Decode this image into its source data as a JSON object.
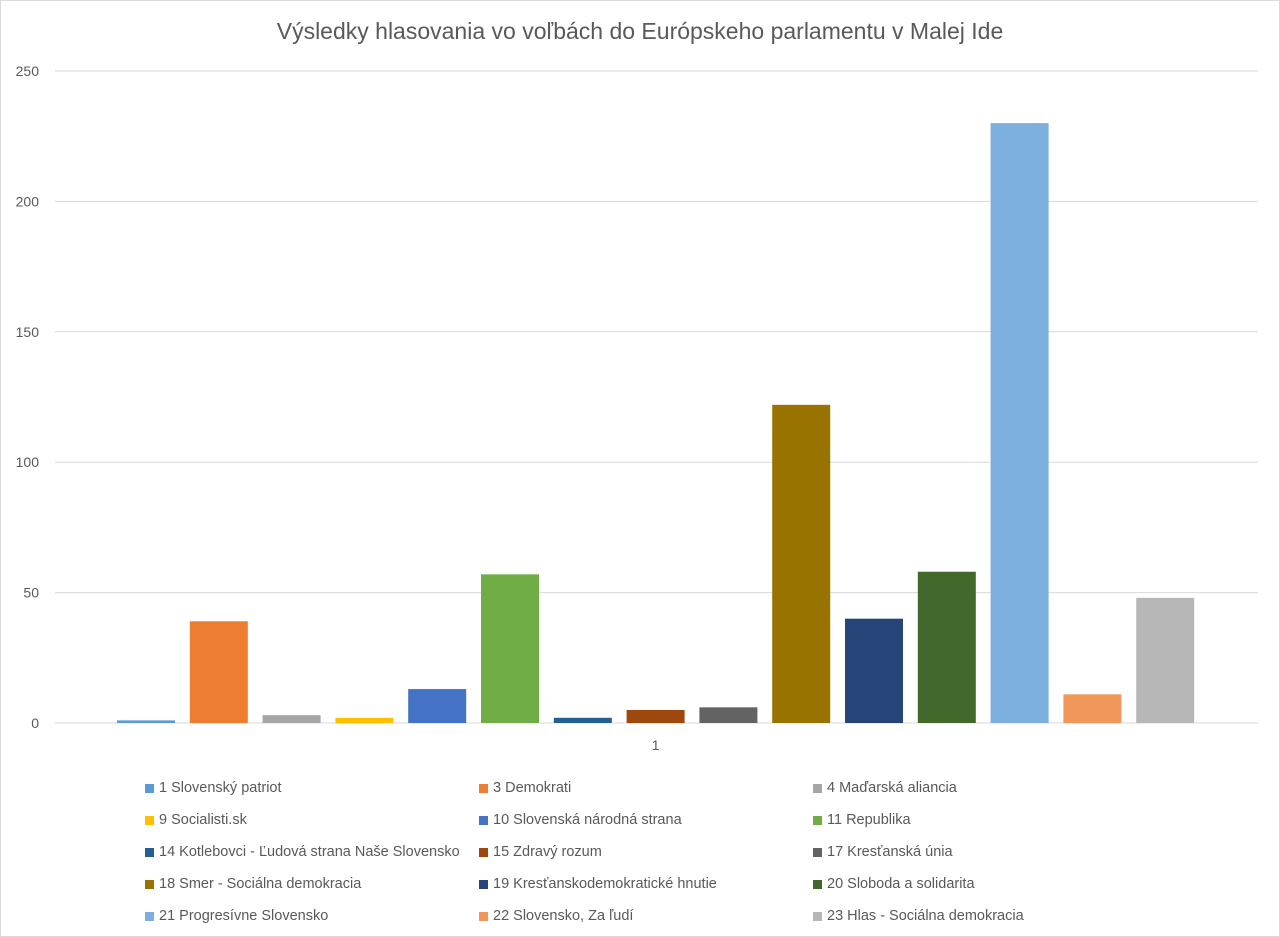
{
  "chart_data": {
    "type": "bar",
    "title": "Výsledky hlasovania vo voľbách do Európskeho parlamentu v Malej Ide",
    "categories": [
      "1"
    ],
    "ylim": [
      0,
      250
    ],
    "yticks": [
      0,
      50,
      100,
      150,
      200,
      250
    ],
    "grid": true,
    "legend_position": "bottom",
    "series": [
      {
        "name": "1 Slovenský patriot",
        "values": [
          1
        ],
        "color": "#5B9BD5"
      },
      {
        "name": "3 Demokrati",
        "values": [
          39
        ],
        "color": "#ED7D31"
      },
      {
        "name": "4 Maďarská aliancia",
        "values": [
          3
        ],
        "color": "#A5A5A5"
      },
      {
        "name": "9 Socialisti.sk",
        "values": [
          2
        ],
        "color": "#FFC000"
      },
      {
        "name": "10 Slovenská národná strana",
        "values": [
          13
        ],
        "color": "#4472C4"
      },
      {
        "name": "11 Republika",
        "values": [
          57
        ],
        "color": "#70AD47"
      },
      {
        "name": "14 Kotlebovci - Ľudová strana Naše Slovensko",
        "values": [
          2
        ],
        "color": "#255E91"
      },
      {
        "name": "15 Zdravý rozum",
        "values": [
          5
        ],
        "color": "#9E480E"
      },
      {
        "name": "17 Kresťanská únia",
        "values": [
          6
        ],
        "color": "#636363"
      },
      {
        "name": "18 Smer - Sociálna demokracia",
        "values": [
          122
        ],
        "color": "#997300"
      },
      {
        "name": "19 Kresťanskodemokratické hnutie",
        "values": [
          40
        ],
        "color": "#264478"
      },
      {
        "name": "20 Sloboda a solidarita",
        "values": [
          58
        ],
        "color": "#43682B"
      },
      {
        "name": "21 Progresívne Slovensko",
        "values": [
          230
        ],
        "color": "#7CAFDD"
      },
      {
        "name": "22 Slovensko, Za ľudí",
        "values": [
          11
        ],
        "color": "#F1975A"
      },
      {
        "name": "23 Hlas - Sociálna demokracia",
        "values": [
          48
        ],
        "color": "#B7B7B7"
      }
    ]
  }
}
